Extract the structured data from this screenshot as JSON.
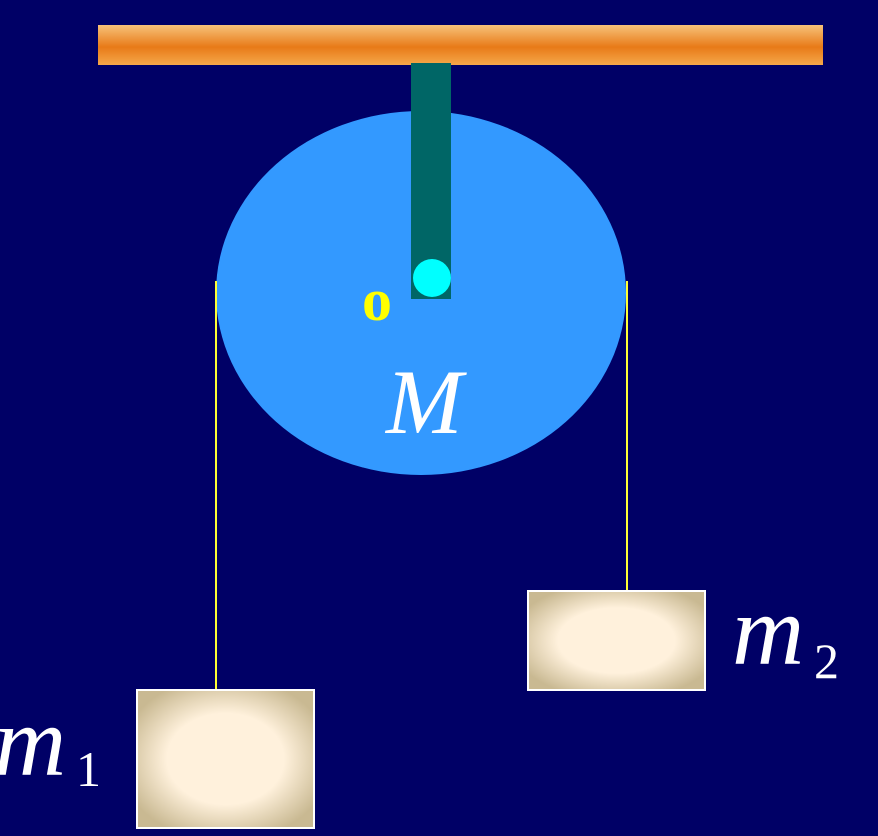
{
  "colors": {
    "background": "#000066",
    "ceiling_top": "#f7c27a",
    "ceiling_mid": "#e87a18",
    "ceiling_bottom": "#f5a84a",
    "support_rod": "#006666",
    "pulley_disk": "#3399ff",
    "axle": "#00ffff",
    "string": "#ffff33",
    "axis_label": "#ffff00",
    "label_text": "#ffffff",
    "block_center": "#fff1dc",
    "block_edge": "#c9b992",
    "block_border": "#ffffff"
  },
  "labels": {
    "axis_point": "o",
    "pulley_mass": "M",
    "mass_left": "m",
    "mass_left_subscript": "1",
    "mass_right": "m",
    "mass_right_subscript": "2"
  }
}
